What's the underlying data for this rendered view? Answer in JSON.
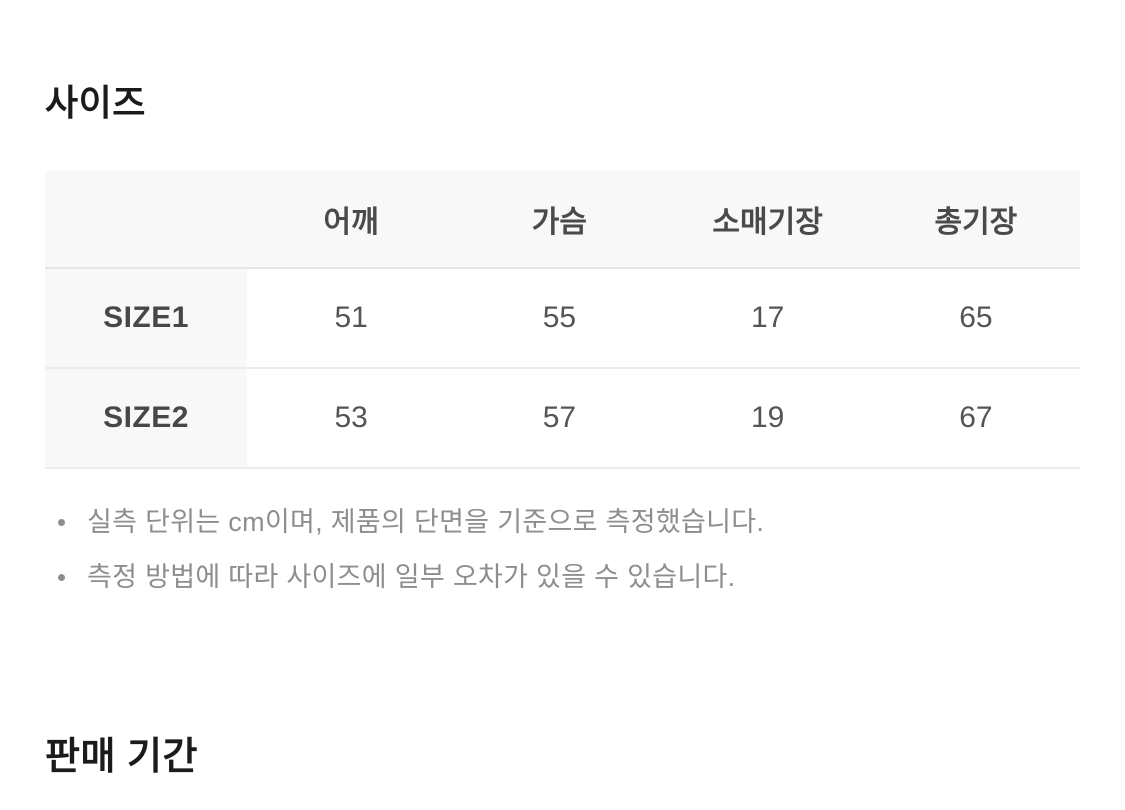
{
  "size_section": {
    "title": "사이즈",
    "table": {
      "columns": [
        "어깨",
        "가슴",
        "소매기장",
        "총기장"
      ],
      "rows": [
        {
          "label": "SIZE1",
          "values": [
            "51",
            "55",
            "17",
            "65"
          ]
        },
        {
          "label": "SIZE2",
          "values": [
            "53",
            "57",
            "19",
            "67"
          ]
        }
      ]
    },
    "notes": [
      "실측 단위는 cm이며, 제품의 단면을 기준으로 측정했습니다.",
      "측정 방법에 따라 사이즈에 일부 오차가 있을 수 있습니다."
    ]
  },
  "sale_section": {
    "title": "판매 기간"
  },
  "colors": {
    "heading_text": "#1b1b1b",
    "table_header_bg": "#f8f8f8",
    "table_border": "#ececec",
    "table_header_text": "#4a4a4a",
    "table_value_text": "#555555",
    "note_text": "#8e8e8e",
    "page_bg": "#ffffff"
  }
}
